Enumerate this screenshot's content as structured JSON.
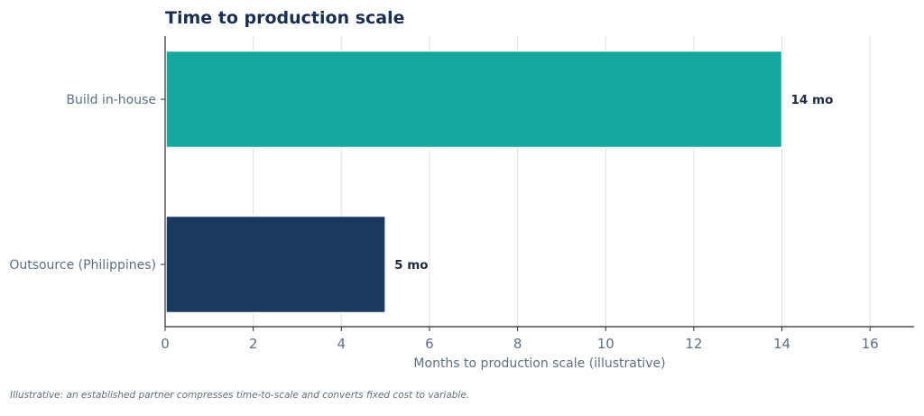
{
  "chart_data": {
    "type": "bar",
    "orientation": "horizontal",
    "title": "Time to production scale",
    "xlabel": "Months to production scale (illustrative)",
    "ylabel": "",
    "categories": [
      "Build in-house",
      "Outsource (Philippines)"
    ],
    "values": [
      14,
      5
    ],
    "data_labels": [
      "14 mo",
      "5 mo"
    ],
    "colors": [
      "#14a89e",
      "#1b3a5f"
    ],
    "xlim": [
      0,
      17
    ],
    "xticks": [
      0,
      2,
      4,
      6,
      8,
      10,
      12,
      14,
      16
    ],
    "grid": "vertical",
    "legend": "none"
  },
  "footnote": "Illustrative: an established partner compresses time-to-scale and converts fixed cost to variable."
}
